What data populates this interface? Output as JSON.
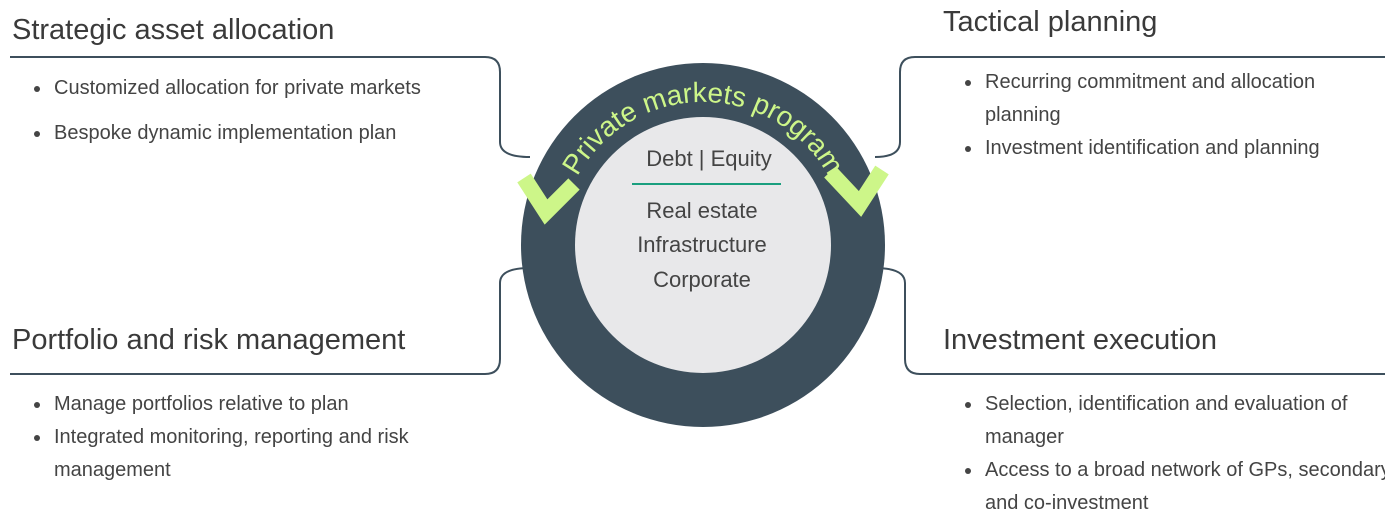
{
  "center": {
    "title": "Private markets program",
    "top": "Debt | Equity",
    "items": [
      "Real estate",
      "Infrastructure",
      "Corporate"
    ]
  },
  "quadrants": [
    {
      "title": "Strategic asset allocation",
      "bullets": [
        "Customized allocation for private markets",
        "Bespoke dynamic implementation plan"
      ]
    },
    {
      "title": "Tactical planning",
      "bullets": [
        "Recurring commitment and allocation planning",
        "Investment identification and planning"
      ]
    },
    {
      "title": "Portfolio and risk management",
      "bullets": [
        "Manage portfolios relative to plan",
        "Integrated monitoring, reporting and risk management"
      ]
    },
    {
      "title": "Investment execution",
      "bullets": [
        "Selection, identification and evaluation of manager",
        "Access to a broad network of GPs, secondary and co-investment"
      ]
    }
  ]
}
